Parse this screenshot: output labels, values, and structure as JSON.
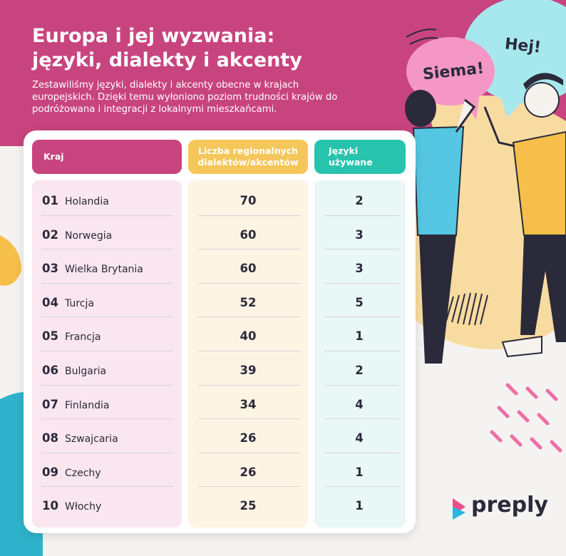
{
  "header": {
    "title_line1": "Europa i jej wyzwania:",
    "title_line2": "języki, dialekty i akcenty",
    "subtitle_line1": "Zestawiliśmy języki, dialekty i akcenty obecne w krajach",
    "subtitle_line2": "europejskich. Dzięki temu wyłoniono poziom trudności krajów do",
    "subtitle_line3": "podróżowana i integracji z lokalnymi mieszkańcami."
  },
  "bubbles": {
    "left": "Siema!",
    "right": "Hej!"
  },
  "logo": {
    "text": "preply"
  },
  "colors": {
    "pink": "#c8447e",
    "yellow": "#f5c65a",
    "teal": "#27c3ad",
    "dark": "#2a2a3a"
  },
  "chart_data": {
    "type": "table",
    "columns": [
      "Kraj",
      "Liczba regionalnych dialektów/akcentów",
      "Języki używane"
    ],
    "column_headers": {
      "country": "Kraj",
      "dialects_line1": "Liczba regionalnych",
      "dialects_line2": "dialektów/akcentów",
      "languages_line1": "Języki",
      "languages_line2": "używane"
    },
    "rows": [
      {
        "rank": "01",
        "country": "Holandia",
        "dialects": 70,
        "languages": 2
      },
      {
        "rank": "02",
        "country": "Norwegia",
        "dialects": 60,
        "languages": 3
      },
      {
        "rank": "03",
        "country": "Wielka Brytania",
        "dialects": 60,
        "languages": 3
      },
      {
        "rank": "04",
        "country": "Turcja",
        "dialects": 52,
        "languages": 5
      },
      {
        "rank": "05",
        "country": "Francja",
        "dialects": 40,
        "languages": 1
      },
      {
        "rank": "06",
        "country": "Bulgaria",
        "dialects": 39,
        "languages": 2
      },
      {
        "rank": "07",
        "country": "Finlandia",
        "dialects": 34,
        "languages": 4
      },
      {
        "rank": "08",
        "country": "Szwajcaria",
        "dialects": 26,
        "languages": 4
      },
      {
        "rank": "09",
        "country": "Czechy",
        "dialects": 26,
        "languages": 1
      },
      {
        "rank": "10",
        "country": "Włochy",
        "dialects": 25,
        "languages": 1
      }
    ]
  }
}
